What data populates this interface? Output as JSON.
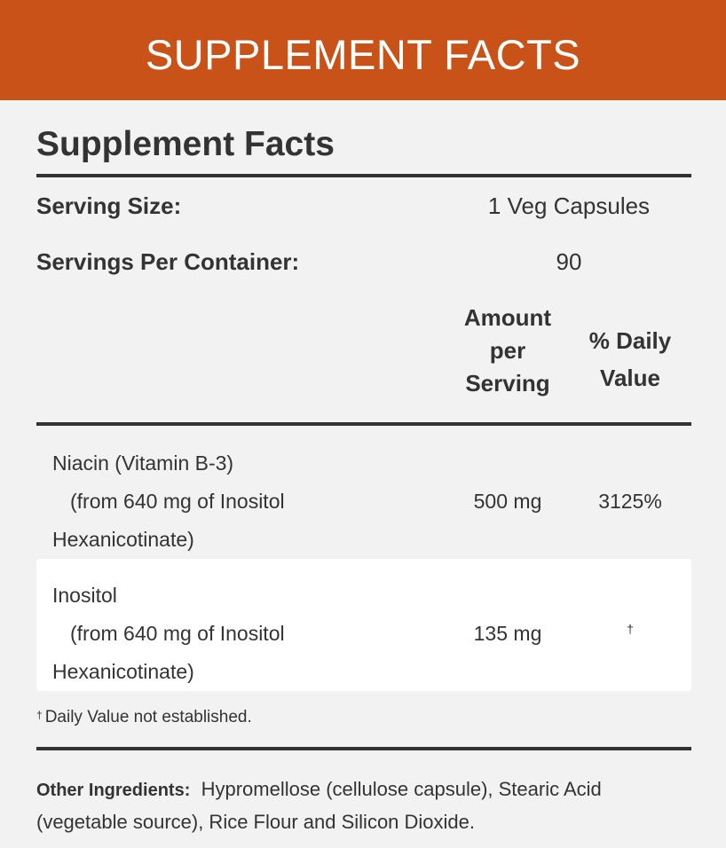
{
  "banner": {
    "title": "SUPPLEMENT FACTS"
  },
  "facts": {
    "title": "Supplement Facts",
    "serving_size_label": "Serving Size:",
    "serving_size_value": "1 Veg Capsules",
    "servings_per_container_label": "Servings Per Container:",
    "servings_per_container_value": "90",
    "header": {
      "amount_line1": "Amount",
      "amount_line2": "per",
      "amount_line3": "Serving",
      "dv_line1": "% Daily",
      "dv_line2": "Value"
    },
    "nutrients": [
      {
        "name": "Niacin (Vitamin B-3)",
        "source_line1": "(from 640 mg of Inositol",
        "source_line2": "Hexanicotinate)",
        "amount": "500 mg",
        "dv": "3125%"
      },
      {
        "name": "Inositol",
        "source_line1": "(from 640 mg of Inositol",
        "source_line2": "Hexanicotinate)",
        "amount": "135 mg",
        "dv": "†"
      }
    ],
    "footnote_mark": "†",
    "footnote_text": "Daily Value not established.",
    "other_ingredients_label": "Other Ingredients:",
    "other_ingredients_text": "Hypromellose (cellulose capsule), Stearic Acid (vegetable source), Rice Flour and Silicon Dioxide."
  },
  "colors": {
    "banner": "#c85218",
    "background": "#f2f2f2",
    "text": "#333333",
    "rule": "#333333"
  }
}
